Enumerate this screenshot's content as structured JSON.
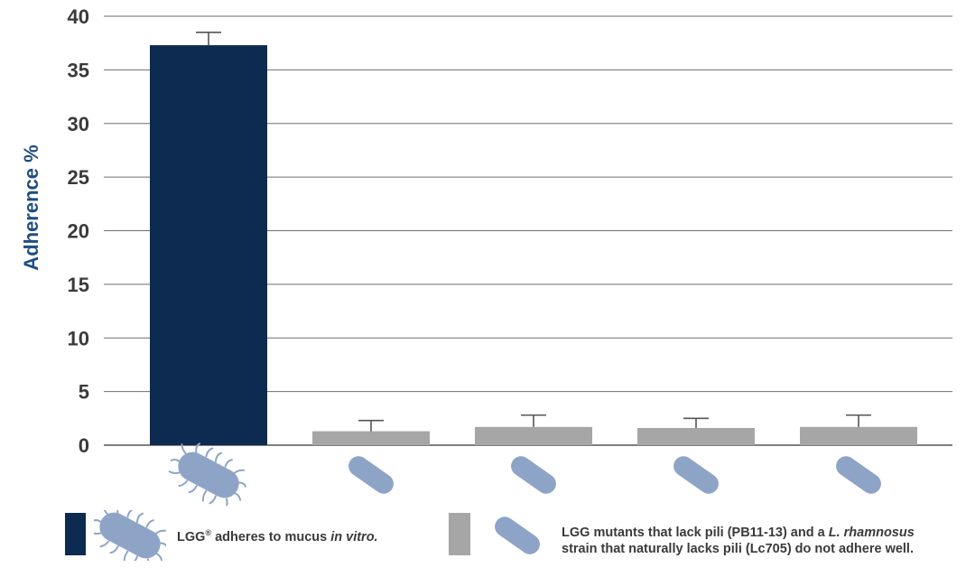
{
  "chart_data": {
    "type": "bar",
    "ylabel": "Adherence %",
    "xlabel": "",
    "ylim": [
      0,
      40
    ],
    "yticks": [
      0,
      5,
      10,
      15,
      20,
      25,
      30,
      35,
      40
    ],
    "grid": true,
    "categories": [
      "",
      "",
      "",
      "",
      ""
    ],
    "values": [
      37.3,
      1.3,
      1.7,
      1.6,
      1.7
    ],
    "errors": [
      1.2,
      1.0,
      1.1,
      0.9,
      1.1
    ],
    "bar_colors": [
      "#0d2a50",
      "#a6a6a6",
      "#a6a6a6",
      "#a6a6a6",
      "#a6a6a6"
    ],
    "category_icons": [
      "piliated-bacterium-icon",
      "smooth-bacterium-icon",
      "smooth-bacterium-icon",
      "smooth-bacterium-icon",
      "smooth-bacterium-icon"
    ]
  },
  "colors": {
    "navy": "#0d2a50",
    "gray": "#a6a6a6",
    "bacterium": "#8ea4c7",
    "axis_label": "#1e4e80",
    "text": "#3a3a3a"
  },
  "legend": {
    "item1": {
      "swatch_color": "#0d2a50",
      "icon": "piliated-bacterium-icon",
      "text_before": "LGG",
      "superscript": "®",
      "text_middle": " adheres to mucus ",
      "text_italic": "in vitro."
    },
    "item2": {
      "swatch_color": "#a6a6a6",
      "icon": "smooth-bacterium-icon",
      "text_a": "LGG mutants that lack pili (PB11-13) and a ",
      "text_italic_a": "L.",
      "text_italic_b": "rhamnosus",
      "text_b": " strain that naturally lacks pili (Lc705) do not adhere well."
    }
  }
}
